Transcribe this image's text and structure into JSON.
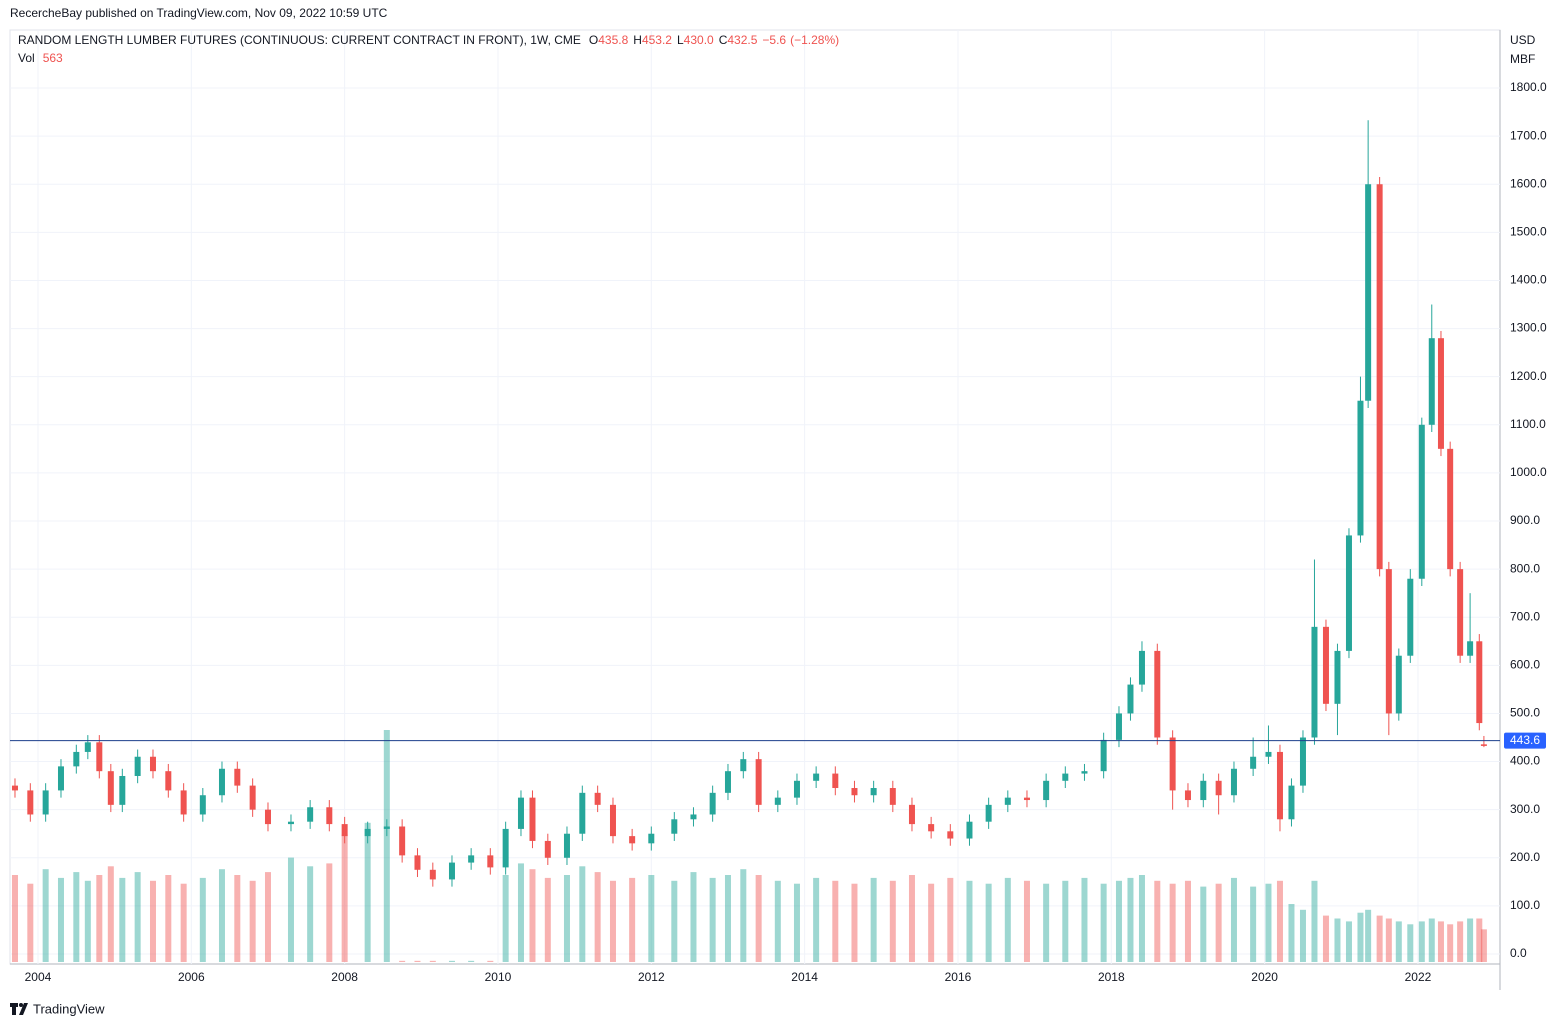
{
  "published": "RecercheBay published on TradingView.com, Nov 09, 2022 10:59 UTC",
  "brand": "TradingView",
  "chart_data": {
    "type": "candlestick",
    "title": "RANDOM LENGTH LUMBER FUTURES (CONTINUOUS: CURRENT CONTRACT IN FRONT), 1W, CME",
    "legend": [
      {
        "key": "O",
        "value": 435.8
      },
      {
        "key": "H",
        "value": 453.2
      },
      {
        "key": "L",
        "value": {
          "value": 430,
          "label": "430.0"
        }
      },
      {
        "key": "C",
        "value": 432.5
      }
    ],
    "change": {
      "value": -5.6,
      "label": "−5.6"
    },
    "change_pct": {
      "value": -1.28,
      "label": "(−1.28%)"
    },
    "volume_label": "Vol",
    "volume_last": 563,
    "y_unit": [
      "USD",
      "MBF"
    ],
    "last_price": 443.6,
    "up_color": "#26a69a",
    "down_color": "#ef5350",
    "grid": true,
    "xlim": [
      2003.635,
      2023.07
    ],
    "xticks": [
      2004,
      2006,
      2008,
      2010,
      2012,
      2014,
      2016,
      2018,
      2020,
      2022
    ],
    "ylim": [
      -20.8,
      1920.6
    ],
    "yticks": [
      {
        "value": 0,
        "label": "0.0"
      },
      {
        "value": 100,
        "label": "100.0"
      },
      {
        "value": 200,
        "label": "200.0"
      },
      {
        "value": 300,
        "label": "300.0"
      },
      {
        "value": 400,
        "label": "400.0"
      },
      {
        "value": 500,
        "label": "500.0"
      },
      {
        "value": 600,
        "label": "600.0"
      },
      {
        "value": 700,
        "label": "700.0"
      },
      {
        "value": 800,
        "label": "800.0"
      },
      {
        "value": 900,
        "label": "900.0"
      },
      {
        "value": 1000,
        "label": "1000.0"
      },
      {
        "value": 1100,
        "label": "1100.0"
      },
      {
        "value": 1200,
        "label": "1200.0"
      },
      {
        "value": 1300,
        "label": "1300.0"
      },
      {
        "value": 1400,
        "label": "1400.0"
      },
      {
        "value": 1500,
        "label": "1500.0"
      },
      {
        "value": 1600,
        "label": "1600.0"
      },
      {
        "value": 1700,
        "label": "1700.0"
      },
      {
        "value": 1800,
        "label": "1800.0"
      }
    ],
    "x": [
      2003.7,
      2003.9,
      2004.1,
      2004.3,
      2004.5,
      2004.65,
      2004.8,
      2004.95,
      2005.1,
      2005.3,
      2005.5,
      2005.7,
      2005.9,
      2006.15,
      2006.4,
      2006.6,
      2006.8,
      2007.0,
      2007.3,
      2007.55,
      2007.8,
      2008.0,
      2008.3,
      2008.55,
      2008.75,
      2008.95,
      2009.15,
      2009.4,
      2009.65,
      2009.9,
      2010.1,
      2010.3,
      2010.45,
      2010.65,
      2010.9,
      2011.1,
      2011.3,
      2011.5,
      2011.75,
      2012.0,
      2012.3,
      2012.55,
      2012.8,
      2013.0,
      2013.2,
      2013.4,
      2013.65,
      2013.9,
      2014.15,
      2014.4,
      2014.65,
      2014.9,
      2015.15,
      2015.4,
      2015.65,
      2015.9,
      2016.15,
      2016.4,
      2016.65,
      2016.9,
      2017.15,
      2017.4,
      2017.65,
      2017.9,
      2018.1,
      2018.25,
      2018.4,
      2018.6,
      2018.8,
      2019.0,
      2019.2,
      2019.4,
      2019.6,
      2019.85,
      2020.05,
      2020.2,
      2020.35,
      2020.5,
      2020.65,
      2020.8,
      2020.95,
      2021.1,
      2021.25,
      2021.35,
      2021.5,
      2021.62,
      2021.75,
      2021.9,
      2022.05,
      2022.18,
      2022.3,
      2022.42,
      2022.55,
      2022.68,
      2022.8,
      2022.86
    ],
    "open": [
      350,
      340,
      290,
      340,
      390,
      420,
      440,
      380,
      310,
      370,
      410,
      380,
      340,
      290,
      330,
      385,
      350,
      300,
      270,
      275,
      305,
      270,
      245,
      260,
      265,
      205,
      175,
      155,
      190,
      205,
      180,
      260,
      325,
      235,
      200,
      250,
      335,
      310,
      245,
      230,
      250,
      280,
      290,
      335,
      380,
      405,
      310,
      325,
      360,
      375,
      345,
      330,
      345,
      310,
      270,
      255,
      240,
      275,
      310,
      325,
      320,
      360,
      375,
      380,
      445,
      500,
      560,
      630,
      450,
      340,
      320,
      360,
      330,
      385,
      410,
      420,
      280,
      350,
      450,
      680,
      520,
      630,
      870,
      1150,
      1600,
      800,
      500,
      620,
      780,
      1100,
      1280,
      1050,
      800,
      620,
      650,
      435.8
    ],
    "high": [
      365,
      355,
      355,
      405,
      435,
      455,
      455,
      395,
      385,
      425,
      425,
      395,
      355,
      345,
      400,
      400,
      365,
      315,
      290,
      320,
      320,
      285,
      275,
      280,
      280,
      220,
      190,
      205,
      220,
      220,
      275,
      340,
      340,
      250,
      265,
      350,
      350,
      325,
      260,
      265,
      295,
      305,
      350,
      395,
      420,
      420,
      340,
      375,
      390,
      390,
      360,
      360,
      360,
      325,
      285,
      270,
      290,
      325,
      340,
      340,
      375,
      390,
      395,
      460,
      515,
      575,
      650,
      645,
      465,
      355,
      375,
      375,
      400,
      450,
      475,
      435,
      365,
      465,
      820,
      695,
      645,
      885,
      1200,
      1733,
      1615,
      815,
      635,
      800,
      1115,
      1350,
      1295,
      1065,
      815,
      750,
      665,
      453.2
    ],
    "low": [
      325,
      275,
      275,
      325,
      375,
      405,
      365,
      295,
      295,
      355,
      365,
      325,
      275,
      275,
      315,
      335,
      285,
      255,
      255,
      260,
      255,
      230,
      230,
      245,
      190,
      160,
      140,
      140,
      175,
      165,
      165,
      245,
      220,
      185,
      185,
      235,
      295,
      230,
      215,
      215,
      235,
      265,
      275,
      320,
      365,
      295,
      295,
      310,
      345,
      330,
      315,
      315,
      295,
      255,
      240,
      225,
      225,
      260,
      295,
      305,
      305,
      345,
      360,
      365,
      430,
      485,
      545,
      435,
      300,
      305,
      305,
      290,
      315,
      370,
      395,
      255,
      265,
      335,
      435,
      505,
      455,
      615,
      855,
      1135,
      785,
      455,
      485,
      605,
      765,
      1085,
      1035,
      785,
      605,
      605,
      465,
      430
    ],
    "close": [
      340,
      290,
      340,
      390,
      420,
      440,
      380,
      310,
      370,
      410,
      380,
      340,
      290,
      330,
      385,
      350,
      300,
      270,
      275,
      305,
      270,
      245,
      260,
      265,
      205,
      175,
      155,
      190,
      205,
      180,
      260,
      325,
      235,
      200,
      250,
      335,
      310,
      245,
      230,
      250,
      280,
      290,
      335,
      380,
      405,
      310,
      325,
      360,
      375,
      345,
      330,
      345,
      310,
      270,
      255,
      240,
      275,
      310,
      325,
      320,
      360,
      375,
      380,
      445,
      500,
      560,
      630,
      450,
      340,
      320,
      360,
      330,
      385,
      410,
      420,
      280,
      350,
      450,
      680,
      520,
      630,
      870,
      1150,
      1600,
      800,
      500,
      620,
      780,
      1100,
      1280,
      1050,
      800,
      620,
      650,
      480,
      432.5
    ],
    "volume": [
      1500,
      1350,
      1600,
      1450,
      1550,
      1400,
      1500,
      1650,
      1450,
      1550,
      1400,
      1500,
      1350,
      1450,
      1600,
      1500,
      1400,
      1550,
      1800,
      1650,
      1700,
      2200,
      2400,
      4000,
      20,
      20,
      20,
      20,
      20,
      20,
      1500,
      1700,
      1600,
      1450,
      1500,
      1650,
      1550,
      1400,
      1450,
      1500,
      1400,
      1550,
      1450,
      1500,
      1600,
      1500,
      1400,
      1350,
      1450,
      1400,
      1350,
      1450,
      1400,
      1500,
      1350,
      1450,
      1400,
      1350,
      1450,
      1400,
      1350,
      1400,
      1450,
      1350,
      1400,
      1450,
      1500,
      1400,
      1350,
      1400,
      1300,
      1350,
      1450,
      1300,
      1350,
      1400,
      1000,
      900,
      1400,
      800,
      750,
      700,
      850,
      900,
      800,
      750,
      700,
      650,
      700,
      750,
      700,
      650,
      700,
      750,
      750,
      563
    ]
  }
}
